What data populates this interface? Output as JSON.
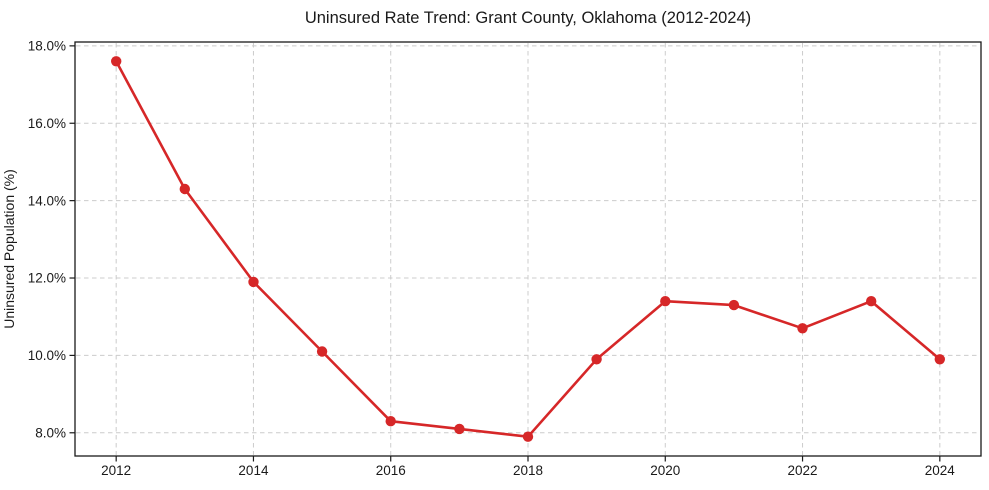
{
  "chart_data": {
    "type": "line",
    "title": "Uninsured Rate Trend: Grant County, Oklahoma (2012-2024)",
    "xlabel": "",
    "ylabel": "Uninsured Population (%)",
    "x": [
      2012,
      2013,
      2014,
      2015,
      2016,
      2017,
      2018,
      2019,
      2020,
      2021,
      2022,
      2023,
      2024
    ],
    "series": [
      {
        "name": "uninsured-rate",
        "values": [
          17.6,
          14.3,
          11.9,
          10.1,
          8.3,
          8.1,
          7.9,
          9.9,
          11.4,
          11.3,
          10.7,
          11.4,
          9.9
        ]
      }
    ],
    "xlim": [
      2011.4,
      2024.6
    ],
    "ylim": [
      7.4,
      18.1
    ],
    "xticks": [
      2012,
      2014,
      2016,
      2018,
      2020,
      2022,
      2024
    ],
    "yticks": [
      8,
      10,
      12,
      14,
      16,
      18
    ],
    "ytick_suffix": "%",
    "ytick_decimals": 1,
    "grid": true,
    "grid_style": "dashed",
    "legend": "none",
    "colors": {
      "line": "#d62728",
      "marker": "#d62728",
      "grid": "#cccccc",
      "spine": "#1a1a1a",
      "background": "#ffffff",
      "text": "#1a1a1a"
    }
  }
}
